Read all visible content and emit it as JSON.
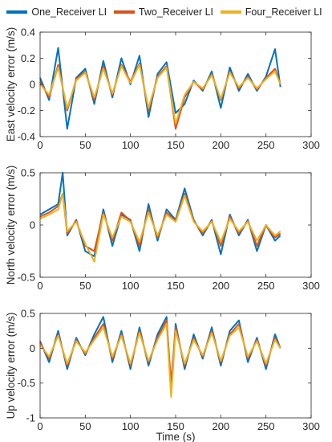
{
  "legend": {
    "series": [
      {
        "name": "One_Receiver LI",
        "color": "#0072BD"
      },
      {
        "name": "Two_Receiver LI",
        "color": "#D95319"
      },
      {
        "name": "Four_Receiver LI",
        "color": "#EDB120"
      }
    ]
  },
  "chart_data": [
    {
      "type": "line",
      "title": "",
      "xlabel": "",
      "ylabel": "East velocity error (m/s)",
      "xlim": [
        0,
        300
      ],
      "ylim": [
        -0.4,
        0.4
      ],
      "xticks": [
        0,
        50,
        100,
        150,
        200,
        250,
        300
      ],
      "yticks": [
        -0.4,
        -0.2,
        0,
        0.2,
        0.4
      ],
      "grid": false,
      "x_range_of_data": [
        0,
        266
      ],
      "series": [
        {
          "name": "One_Receiver LI",
          "color": "#0072BD",
          "x": [
            0,
            10,
            20,
            30,
            40,
            50,
            60,
            70,
            80,
            90,
            100,
            110,
            120,
            130,
            140,
            150,
            160,
            170,
            180,
            190,
            200,
            210,
            220,
            230,
            240,
            250,
            260,
            266
          ],
          "y": [
            0.05,
            -0.12,
            0.28,
            -0.34,
            0.05,
            0.12,
            -0.15,
            0.18,
            -0.1,
            0.2,
            0.0,
            0.22,
            -0.25,
            0.08,
            0.17,
            -0.22,
            -0.15,
            0.03,
            -0.05,
            0.1,
            -0.18,
            0.13,
            -0.05,
            0.08,
            -0.05,
            0.06,
            0.27,
            -0.02
          ]
        },
        {
          "name": "Two_Receiver LI",
          "color": "#D95319",
          "x": [
            0,
            10,
            20,
            30,
            40,
            50,
            60,
            70,
            80,
            90,
            100,
            110,
            120,
            130,
            140,
            150,
            160,
            170,
            180,
            190,
            200,
            210,
            220,
            230,
            240,
            250,
            260,
            266
          ],
          "y": [
            0.02,
            -0.1,
            0.15,
            -0.2,
            0.04,
            0.1,
            -0.12,
            0.14,
            -0.08,
            0.15,
            0.02,
            0.16,
            -0.2,
            0.06,
            0.14,
            -0.34,
            -0.1,
            0.02,
            -0.04,
            0.08,
            -0.12,
            0.1,
            -0.03,
            0.06,
            -0.04,
            0.05,
            0.12,
            0.0
          ]
        },
        {
          "name": "Four_Receiver LI",
          "color": "#EDB120",
          "x": [
            0,
            10,
            20,
            30,
            40,
            50,
            60,
            70,
            80,
            90,
            100,
            110,
            120,
            130,
            140,
            150,
            160,
            170,
            180,
            190,
            200,
            210,
            220,
            230,
            240,
            250,
            260,
            266
          ],
          "y": [
            0.0,
            -0.08,
            0.13,
            -0.18,
            0.03,
            0.09,
            -0.1,
            0.12,
            -0.07,
            0.14,
            0.01,
            0.15,
            -0.18,
            0.05,
            0.13,
            -0.3,
            -0.08,
            0.02,
            -0.03,
            0.07,
            -0.11,
            0.09,
            -0.02,
            0.05,
            -0.03,
            0.04,
            0.1,
            0.0
          ]
        }
      ]
    },
    {
      "type": "line",
      "title": "",
      "xlabel": "",
      "ylabel": "North velocity error (m/s)",
      "xlim": [
        0,
        300
      ],
      "ylim": [
        -0.5,
        0.5
      ],
      "xticks": [
        0,
        50,
        100,
        150,
        200,
        250,
        300
      ],
      "yticks": [
        -0.5,
        0,
        0.5
      ],
      "grid": false,
      "x_range_of_data": [
        0,
        266
      ],
      "series": [
        {
          "name": "One_Receiver LI",
          "color": "#0072BD",
          "x": [
            0,
            10,
            20,
            25,
            30,
            40,
            50,
            60,
            70,
            80,
            90,
            100,
            110,
            120,
            130,
            140,
            150,
            160,
            170,
            180,
            190,
            200,
            210,
            220,
            230,
            240,
            250,
            260,
            266
          ],
          "y": [
            0.1,
            0.15,
            0.2,
            0.5,
            -0.1,
            0.05,
            -0.25,
            -0.3,
            0.15,
            -0.2,
            0.1,
            0.05,
            -0.25,
            0.2,
            -0.15,
            0.15,
            0.05,
            0.35,
            0.05,
            -0.1,
            0.05,
            -0.28,
            0.1,
            -0.1,
            0.05,
            -0.25,
            0.0,
            -0.15,
            -0.1
          ]
        },
        {
          "name": "Two_Receiver LI",
          "color": "#D95319",
          "x": [
            0,
            10,
            20,
            25,
            30,
            40,
            50,
            60,
            70,
            80,
            90,
            100,
            110,
            120,
            130,
            140,
            150,
            160,
            170,
            180,
            190,
            200,
            210,
            220,
            230,
            240,
            250,
            260,
            266
          ],
          "y": [
            0.08,
            0.12,
            0.18,
            0.3,
            -0.08,
            0.04,
            -0.2,
            -0.25,
            0.12,
            -0.15,
            0.12,
            0.04,
            -0.2,
            0.15,
            -0.12,
            0.12,
            0.04,
            0.3,
            0.04,
            -0.08,
            0.04,
            -0.2,
            0.08,
            -0.08,
            0.04,
            -0.2,
            0.0,
            -0.12,
            -0.08
          ]
        },
        {
          "name": "Four_Receiver LI",
          "color": "#EDB120",
          "x": [
            0,
            10,
            20,
            25,
            30,
            40,
            50,
            60,
            70,
            80,
            90,
            100,
            110,
            120,
            130,
            140,
            150,
            160,
            170,
            180,
            190,
            200,
            210,
            220,
            230,
            240,
            250,
            260,
            266
          ],
          "y": [
            0.06,
            0.1,
            0.15,
            0.3,
            -0.06,
            0.03,
            -0.18,
            -0.35,
            0.1,
            -0.12,
            0.08,
            0.03,
            -0.16,
            0.12,
            -0.1,
            0.1,
            0.03,
            0.28,
            0.03,
            -0.06,
            0.03,
            -0.16,
            0.06,
            -0.06,
            0.03,
            -0.15,
            0.0,
            -0.1,
            -0.06
          ]
        }
      ]
    },
    {
      "type": "line",
      "title": "",
      "xlabel": "Time (s)",
      "ylabel": "Up velocity error (m/s)",
      "xlim": [
        0,
        300
      ],
      "ylim": [
        -1,
        0.5
      ],
      "xticks": [
        0,
        50,
        100,
        150,
        200,
        250,
        300
      ],
      "yticks": [
        -1,
        -0.5,
        0,
        0.5
      ],
      "grid": false,
      "x_range_of_data": [
        0,
        266
      ],
      "series": [
        {
          "name": "One_Receiver LI",
          "color": "#0072BD",
          "x": [
            0,
            10,
            20,
            30,
            40,
            50,
            60,
            70,
            80,
            90,
            100,
            110,
            120,
            130,
            140,
            145,
            150,
            160,
            170,
            180,
            190,
            200,
            210,
            220,
            230,
            240,
            250,
            260,
            266
          ],
          "y": [
            0.1,
            -0.2,
            0.25,
            -0.3,
            0.15,
            -0.1,
            0.2,
            0.45,
            -0.2,
            0.25,
            -0.3,
            0.3,
            -0.25,
            0.2,
            0.45,
            -0.65,
            0.35,
            -0.3,
            0.2,
            -0.15,
            0.3,
            -0.25,
            0.25,
            0.4,
            -0.2,
            0.15,
            -0.3,
            0.2,
            0.0
          ]
        },
        {
          "name": "Two_Receiver LI",
          "color": "#D95319",
          "x": [
            0,
            10,
            20,
            30,
            40,
            50,
            60,
            70,
            80,
            90,
            100,
            110,
            120,
            130,
            140,
            145,
            150,
            160,
            170,
            180,
            190,
            200,
            210,
            220,
            230,
            240,
            250,
            260,
            266
          ],
          "y": [
            0.08,
            -0.15,
            0.2,
            -0.25,
            0.12,
            -0.08,
            0.15,
            0.35,
            -0.15,
            0.2,
            -0.25,
            0.25,
            -0.2,
            0.15,
            0.4,
            -0.5,
            0.3,
            -0.25,
            0.15,
            -0.12,
            0.25,
            -0.2,
            0.2,
            0.35,
            -0.15,
            0.12,
            -0.25,
            0.15,
            0.0
          ]
        },
        {
          "name": "Four_Receiver LI",
          "color": "#EDB120",
          "x": [
            0,
            10,
            20,
            30,
            40,
            50,
            60,
            70,
            80,
            90,
            100,
            110,
            120,
            130,
            140,
            145,
            150,
            160,
            170,
            180,
            190,
            200,
            210,
            220,
            230,
            240,
            250,
            260,
            266
          ],
          "y": [
            0.05,
            -0.12,
            0.18,
            -0.22,
            0.1,
            -0.06,
            0.12,
            0.3,
            -0.12,
            0.18,
            -0.22,
            0.22,
            -0.18,
            0.12,
            0.35,
            -0.7,
            0.25,
            -0.22,
            0.12,
            -0.1,
            0.22,
            -0.18,
            0.18,
            0.3,
            -0.12,
            0.1,
            -0.22,
            0.12,
            0.0
          ]
        }
      ]
    }
  ]
}
